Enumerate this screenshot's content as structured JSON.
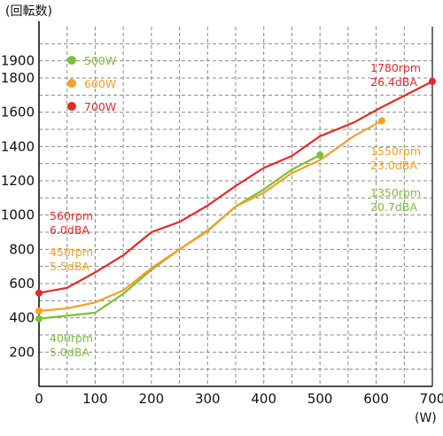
{
  "chart_data": {
    "type": "line",
    "ylabel": "(回転数)",
    "xlabel": "(W)",
    "xlim": [
      0,
      700
    ],
    "ylim": [
      0,
      2100
    ],
    "x_ticks": [
      "0",
      "100",
      "200",
      "300",
      "400",
      "500",
      "600",
      "700"
    ],
    "y_ticks": [
      "200",
      "400",
      "600",
      "800",
      "1000",
      "1200",
      "1400",
      "1600",
      "1800",
      "1900"
    ],
    "grid": true,
    "grid_style": "dashed",
    "legend_position": "top-left",
    "series": [
      {
        "name": "500W",
        "color": "#7cbf3a",
        "points": [
          [
            0,
            395
          ],
          [
            100,
            430
          ],
          [
            150,
            540
          ],
          [
            200,
            680
          ],
          [
            250,
            800
          ],
          [
            300,
            910
          ],
          [
            350,
            1050
          ],
          [
            400,
            1150
          ],
          [
            450,
            1265
          ],
          [
            500,
            1350
          ]
        ]
      },
      {
        "name": "600W",
        "color": "#f5a028",
        "points": [
          [
            0,
            440
          ],
          [
            50,
            455
          ],
          [
            100,
            490
          ],
          [
            150,
            560
          ],
          [
            200,
            690
          ],
          [
            250,
            800
          ],
          [
            300,
            905
          ],
          [
            350,
            1050
          ],
          [
            400,
            1130
          ],
          [
            450,
            1245
          ],
          [
            500,
            1320
          ],
          [
            560,
            1460
          ],
          [
            610,
            1550
          ]
        ]
      },
      {
        "name": "700W",
        "color": "#e02b2b",
        "points": [
          [
            0,
            545
          ],
          [
            50,
            575
          ],
          [
            100,
            665
          ],
          [
            150,
            765
          ],
          [
            200,
            900
          ],
          [
            250,
            960
          ],
          [
            300,
            1055
          ],
          [
            350,
            1170
          ],
          [
            400,
            1275
          ],
          [
            450,
            1345
          ],
          [
            500,
            1460
          ],
          [
            560,
            1540
          ],
          [
            610,
            1630
          ],
          [
            700,
            1780
          ]
        ]
      }
    ],
    "annotations": [
      {
        "lines": [
          "560rpm",
          "6.0dBA"
        ],
        "color": "#e02b2b"
      },
      {
        "lines": [
          "450rpm",
          "5.5dBA"
        ],
        "color": "#f5a028"
      },
      {
        "lines": [
          "400rpm",
          "5.0dBA"
        ],
        "color": "#7cbf3a"
      },
      {
        "lines": [
          "1780rpm",
          "26.4dBA"
        ],
        "color": "#e02b2b"
      },
      {
        "lines": [
          "1550rpm",
          "23.0dBA"
        ],
        "color": "#f5a028"
      },
      {
        "lines": [
          "1350rpm",
          "20.7dBA"
        ],
        "color": "#7cbf3a"
      }
    ]
  }
}
